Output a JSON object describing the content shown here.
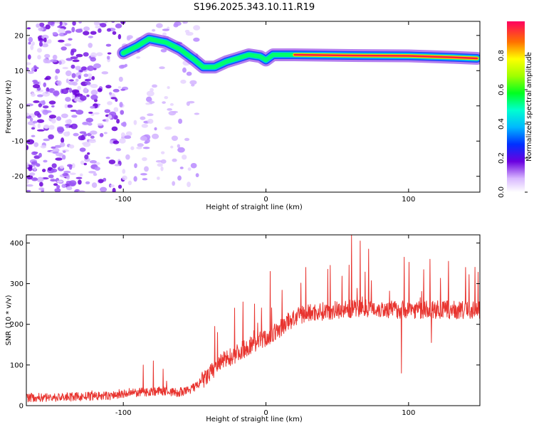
{
  "title": "S196.2025.343.10.11.R19",
  "chart_data": [
    {
      "type": "heatmap",
      "xlabel": "Height of straight line (km)",
      "ylabel": "Frequency (Hz)",
      "xlim": [
        -168,
        150
      ],
      "ylim": [
        -24.5,
        24
      ],
      "xticks": [
        -100,
        0,
        100
      ],
      "yticks": [
        20,
        10,
        0,
        -10,
        -20
      ],
      "ridge": [
        {
          "x": -100,
          "y": 15
        },
        {
          "x": -90,
          "y": 17
        },
        {
          "x": -82,
          "y": 19
        },
        {
          "x": -70,
          "y": 18
        },
        {
          "x": -60,
          "y": 16
        },
        {
          "x": -50,
          "y": 13
        },
        {
          "x": -44,
          "y": 11
        },
        {
          "x": -36,
          "y": 11
        },
        {
          "x": -28,
          "y": 12.5
        },
        {
          "x": -20,
          "y": 13.5
        },
        {
          "x": -12,
          "y": 14.5
        },
        {
          "x": -4,
          "y": 14
        },
        {
          "x": 0,
          "y": 13
        },
        {
          "x": 5,
          "y": 14.5
        },
        {
          "x": 20,
          "y": 14.5
        },
        {
          "x": 60,
          "y": 14.3
        },
        {
          "x": 100,
          "y": 14.2
        },
        {
          "x": 130,
          "y": 13.8
        },
        {
          "x": 148,
          "y": 13.5
        }
      ],
      "colorbar": {
        "label": "Normalized spectral amplitude",
        "min": 0,
        "max": 1,
        "ticks": [
          "0.0",
          "0.2",
          "0.4",
          "0.6",
          "0.8"
        ]
      }
    },
    {
      "type": "line",
      "xlabel": "Height of straight line (km)",
      "ylabel": "SNR (10 * v/v)",
      "xlim": [
        -168,
        150
      ],
      "ylim": [
        0,
        420
      ],
      "xticks": [
        -100,
        0,
        100
      ],
      "yticks": [
        0,
        100,
        200,
        300,
        400
      ],
      "color": "#e8342f",
      "x": [
        -168,
        -150,
        -130,
        -110,
        -100,
        -90,
        -80,
        -70,
        -60,
        -50,
        -45,
        -40,
        -35,
        -30,
        -25,
        -20,
        -15,
        -10,
        -5,
        0,
        5,
        10,
        15,
        20,
        25,
        30,
        40,
        50,
        60,
        70,
        80,
        90,
        100,
        110,
        120,
        130,
        140,
        150
      ],
      "y": [
        20,
        20,
        22,
        24,
        28,
        32,
        35,
        36,
        30,
        45,
        60,
        75,
        95,
        110,
        120,
        130,
        140,
        150,
        160,
        165,
        175,
        190,
        205,
        215,
        222,
        228,
        232,
        236,
        238,
        240,
        238,
        236,
        238,
        235,
        236,
        235,
        234,
        235
      ],
      "spikes": [
        {
          "x": -86,
          "y": 100
        },
        {
          "x": -79,
          "y": 110
        },
        {
          "x": -72,
          "y": 90
        },
        {
          "x": -36,
          "y": 195
        },
        {
          "x": -34,
          "y": 180
        },
        {
          "x": -22,
          "y": 240
        },
        {
          "x": -16,
          "y": 255
        },
        {
          "x": -8,
          "y": 250
        },
        {
          "x": 3,
          "y": 330
        },
        {
          "x": 28,
          "y": 340
        },
        {
          "x": 45,
          "y": 345
        },
        {
          "x": 60,
          "y": 420
        },
        {
          "x": 66,
          "y": 405
        },
        {
          "x": 72,
          "y": 385
        },
        {
          "x": 97,
          "y": 365
        },
        {
          "x": 115,
          "y": 360
        },
        {
          "x": 128,
          "y": 355
        },
        {
          "x": 140,
          "y": 340
        }
      ],
      "dips": [
        {
          "x": 95,
          "y": 80
        },
        {
          "x": 116,
          "y": 155
        }
      ]
    }
  ]
}
